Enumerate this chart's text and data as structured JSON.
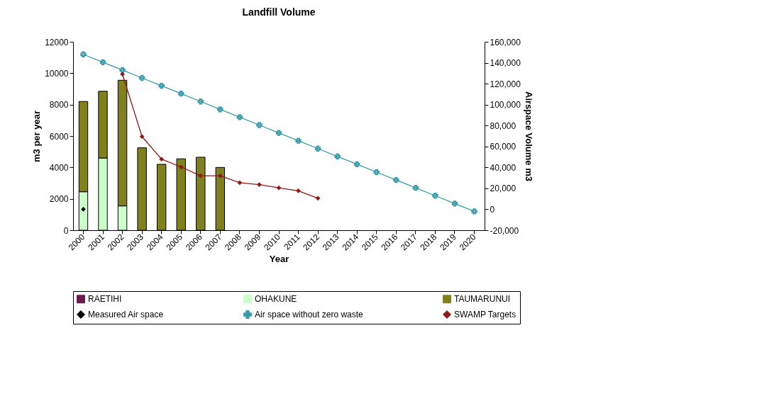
{
  "chart_data": {
    "type": "bar",
    "title": "Landfill Volume",
    "xlabel": "Year",
    "ylabel": "m3 per year",
    "y2label": "Airspace Volume m3",
    "categories": [
      "2000",
      "2001",
      "2002",
      "2003",
      "2004",
      "2005",
      "2006",
      "2007",
      "2008",
      "2009",
      "2010",
      "2011",
      "2012",
      "2013",
      "2014",
      "2015",
      "2016",
      "2017",
      "2018",
      "2019",
      "2020"
    ],
    "stacked": true,
    "legend": "bottom",
    "ylim": [
      0,
      12000
    ],
    "yticks": [
      0,
      2000,
      4000,
      6000,
      8000,
      10000,
      12000
    ],
    "y2lim": [
      -20000,
      160000
    ],
    "y2ticks": [
      {
        "value": -20000,
        "label": "-20,000"
      },
      0,
      {
        "value": 20000,
        "label": "20,000"
      },
      {
        "value": 40000,
        "label": "40,000"
      },
      {
        "value": 60000,
        "label": "60,000"
      },
      {
        "value": 80000,
        "label": "80,000"
      },
      {
        "value": 100000,
        "label": "100,000"
      },
      {
        "value": 120000,
        "label": "120,000"
      },
      {
        "value": 140000,
        "label": "140,000"
      },
      {
        "value": 160000,
        "label": "160,000"
      }
    ],
    "series": [
      {
        "name": "RAETIHI",
        "color": "#6b1a50",
        "values": [
          null,
          null,
          null,
          null,
          null,
          null,
          null,
          null,
          null,
          null,
          null,
          null,
          null,
          null,
          null,
          null,
          null,
          null,
          null,
          null,
          null
        ]
      },
      {
        "name": "OHAKUNE",
        "color": "#ccffcc",
        "values": [
          2450,
          4600,
          1550,
          null,
          null,
          null,
          null,
          null,
          null,
          null,
          null,
          null,
          null,
          null,
          null,
          null,
          null,
          null,
          null,
          null,
          null
        ]
      },
      {
        "name": "TAUMARUNUI",
        "color": "#808020",
        "values": [
          5750,
          4250,
          8000,
          5250,
          4200,
          4550,
          4650,
          4000,
          null,
          null,
          null,
          null,
          null,
          null,
          null,
          null,
          null,
          null,
          null,
          null,
          null
        ]
      },
      {
        "name": "Measured Air space",
        "type": "line",
        "axis": "y2",
        "marker": "diamond",
        "color": "#000000",
        "values": [
          0,
          null,
          null,
          null,
          null,
          null,
          null,
          null,
          null,
          null,
          null,
          null,
          null,
          null,
          null,
          null,
          null,
          null,
          null,
          null,
          null
        ]
      },
      {
        "name": "Air space without zero waste",
        "type": "line",
        "axis": "y2",
        "marker": "cross",
        "color": "#3a9aa8",
        "values": [
          148000,
          140500,
          133000,
          125500,
          118000,
          110500,
          103000,
          95500,
          88000,
          80500,
          73000,
          65500,
          58000,
          50500,
          43000,
          35500,
          28000,
          20500,
          13000,
          5500,
          -2000
        ]
      },
      {
        "name": "SWAMP Targets",
        "type": "line",
        "axis": "y2",
        "marker": "diamond",
        "color": "#8b1a1a",
        "values": [
          null,
          null,
          129000,
          69500,
          47900,
          40400,
          32000,
          32000,
          25400,
          23600,
          20500,
          17700,
          10600,
          null,
          null,
          null,
          null,
          null,
          null,
          null,
          null
        ]
      }
    ]
  }
}
